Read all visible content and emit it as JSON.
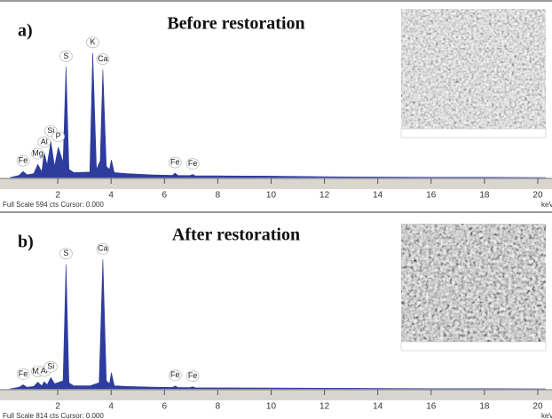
{
  "chart_data": [
    {
      "type": "area",
      "panel_label": "a)",
      "title": "Before restoration",
      "footer": "Full Scale 594 cts Cursor: 0.000",
      "x_unit": "keV",
      "color": "#2e3c9e",
      "xlim": [
        0.1,
        20.3
      ],
      "xticks": [
        2,
        4,
        6,
        8,
        10,
        12,
        14,
        16,
        18,
        20
      ],
      "ylim": [
        0,
        594
      ],
      "x": [
        0.2,
        0.55,
        0.7,
        0.85,
        1.1,
        1.25,
        1.4,
        1.49,
        1.6,
        1.74,
        1.88,
        2.02,
        2.2,
        2.31,
        2.42,
        2.6,
        3.2,
        3.31,
        3.45,
        3.59,
        3.69,
        3.82,
        3.94,
        4.01,
        4.12,
        4.6,
        5.5,
        6.3,
        6.4,
        6.5,
        6.95,
        7.06,
        7.17,
        8,
        10,
        12,
        14,
        16,
        18,
        20.3
      ],
      "values": [
        0,
        8,
        22,
        10,
        14,
        48,
        20,
        90,
        45,
        130,
        40,
        110,
        55,
        400,
        30,
        18,
        20,
        450,
        30,
        60,
        390,
        40,
        30,
        64,
        18,
        14,
        10,
        8,
        16,
        8,
        7,
        11,
        6,
        6,
        5,
        3,
        2,
        1,
        1,
        0
      ],
      "peak_labels": [
        {
          "label": "Fe",
          "x": 0.7
        },
        {
          "label": "Mg",
          "x": 1.25
        },
        {
          "label": "Al",
          "x": 1.49
        },
        {
          "label": "Si",
          "x": 1.74
        },
        {
          "label": "P",
          "x": 2.02
        },
        {
          "label": "S",
          "x": 2.31
        },
        {
          "label": "K",
          "x": 3.31
        },
        {
          "label": "Ca",
          "x": 3.69
        },
        {
          "label": "Fe",
          "x": 6.4
        },
        {
          "label": "Fe",
          "x": 7.06
        }
      ]
    },
    {
      "type": "area",
      "panel_label": "b)",
      "title": "After restoration",
      "footer": "Full Scale 814 cts Cursor: 0.000",
      "x_unit": "keV",
      "color": "#2e3c9e",
      "xlim": [
        0.1,
        20.3
      ],
      "xticks": [
        2,
        4,
        6,
        8,
        10,
        12,
        14,
        16,
        18,
        20
      ],
      "ylim": [
        0,
        814
      ],
      "x": [
        0.2,
        0.55,
        0.7,
        0.85,
        1.1,
        1.25,
        1.4,
        1.49,
        1.6,
        1.74,
        1.88,
        2.2,
        2.31,
        2.42,
        2.6,
        3.2,
        3.55,
        3.69,
        3.82,
        3.94,
        4.01,
        4.12,
        4.6,
        5.5,
        6.3,
        6.4,
        6.5,
        6.95,
        7.06,
        7.17,
        8,
        10,
        12,
        14,
        16,
        18,
        20.3
      ],
      "values": [
        0,
        8,
        20,
        8,
        12,
        33,
        15,
        35,
        20,
        56,
        25,
        40,
        617,
        30,
        15,
        15,
        30,
        641,
        40,
        25,
        80,
        15,
        12,
        9,
        7,
        14,
        7,
        6,
        10,
        5,
        5,
        4,
        3,
        2,
        1,
        1,
        0
      ],
      "peak_labels": [
        {
          "label": "Fe",
          "x": 0.7
        },
        {
          "label": "Mg",
          "x": 1.25
        },
        {
          "label": "Al",
          "x": 1.49
        },
        {
          "label": "Si",
          "x": 1.74
        },
        {
          "label": "S",
          "x": 2.31
        },
        {
          "label": "Ca",
          "x": 3.69
        },
        {
          "label": "Fe",
          "x": 6.4
        },
        {
          "label": "Fe",
          "x": 7.06
        }
      ]
    }
  ]
}
